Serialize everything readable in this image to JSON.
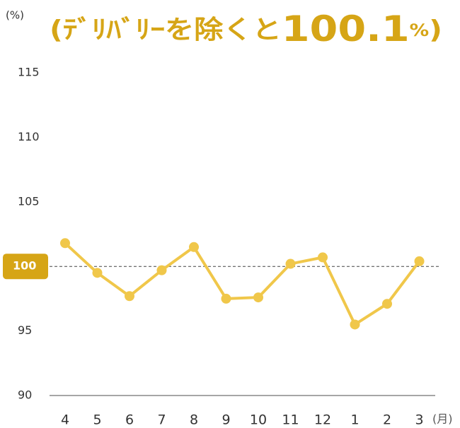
{
  "chart_data": {
    "type": "line",
    "title_parts": [
      "(ﾃﾞﾘﾊﾞﾘｰを除くと",
      "100.1",
      "%",
      ")"
    ],
    "y_unit": "(%)",
    "x_unit": "(月)",
    "categories": [
      "4",
      "5",
      "6",
      "7",
      "8",
      "9",
      "10",
      "11",
      "12",
      "1",
      "2",
      "3"
    ],
    "values": [
      101.8,
      99.5,
      97.7,
      99.7,
      101.5,
      97.5,
      97.6,
      100.2,
      100.7,
      95.5,
      97.1,
      100.4
    ],
    "color": "#f0c74a",
    "ylim": [
      90,
      115
    ],
    "yticks": [
      90,
      95,
      100,
      105,
      110,
      115
    ],
    "reference_line": 100,
    "highlight_color": "#d6a516"
  }
}
